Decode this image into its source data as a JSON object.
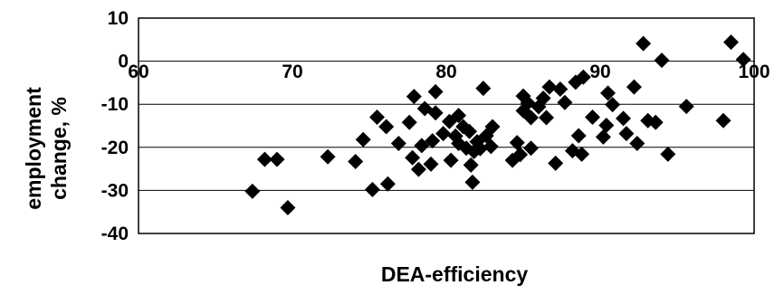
{
  "chart_data": {
    "type": "scatter",
    "title": "",
    "xlabel": "DEA-efficiency",
    "ylabel_lines": [
      "employment",
      "change, %"
    ],
    "xlim": [
      60,
      100
    ],
    "ylim": [
      -40,
      10
    ],
    "x_ticks": [
      60,
      70,
      80,
      90,
      100
    ],
    "y_ticks": [
      10,
      0,
      -10,
      -20,
      -30,
      -40
    ],
    "x_tick_labels": [
      "60",
      "70",
      "80",
      "90",
      "100"
    ],
    "y_tick_labels": [
      "10",
      "0",
      "-10",
      "-20",
      "-30",
      "-40"
    ],
    "grid": "horizontal",
    "marker": "diamond",
    "marker_color": "#000000",
    "series": [
      {
        "points": [
          [
            67.4,
            -30.2
          ],
          [
            68.2,
            -22.8
          ],
          [
            69.0,
            -22.8
          ],
          [
            69.7,
            -34.0
          ],
          [
            72.3,
            -22.2
          ],
          [
            74.1,
            -23.3
          ],
          [
            74.6,
            -18.2
          ],
          [
            75.2,
            -29.8
          ],
          [
            75.5,
            -13.0
          ],
          [
            76.1,
            -15.2
          ],
          [
            76.2,
            -28.5
          ],
          [
            76.9,
            -19.1
          ],
          [
            77.6,
            -14.2
          ],
          [
            77.8,
            -22.4
          ],
          [
            77.9,
            -8.2
          ],
          [
            78.2,
            -25.1
          ],
          [
            78.4,
            -19.6
          ],
          [
            78.6,
            -11.0
          ],
          [
            79.0,
            -23.9
          ],
          [
            79.1,
            -18.5
          ],
          [
            79.3,
            -7.1
          ],
          [
            79.3,
            -12.0
          ],
          [
            79.8,
            -16.8
          ],
          [
            80.2,
            -14.0
          ],
          [
            80.3,
            -23.0
          ],
          [
            80.6,
            -17.4
          ],
          [
            80.8,
            -12.6
          ],
          [
            80.8,
            -19.1
          ],
          [
            81.1,
            -15.2
          ],
          [
            81.3,
            -20.2
          ],
          [
            81.5,
            -16.3
          ],
          [
            81.6,
            -24.1
          ],
          [
            81.7,
            -28.1
          ],
          [
            81.8,
            -21.0
          ],
          [
            82.0,
            -18.7
          ],
          [
            82.2,
            -20.3
          ],
          [
            82.4,
            -6.3
          ],
          [
            82.6,
            -17.3
          ],
          [
            82.9,
            -19.8
          ],
          [
            83.0,
            -15.2
          ],
          [
            84.3,
            -23.0
          ],
          [
            84.6,
            -18.9
          ],
          [
            84.8,
            -21.7
          ],
          [
            85.0,
            -8.1
          ],
          [
            85.0,
            -11.5
          ],
          [
            85.3,
            -9.7
          ],
          [
            85.5,
            -20.2
          ],
          [
            85.5,
            -13.1
          ],
          [
            86.0,
            -10.6
          ],
          [
            86.3,
            -8.6
          ],
          [
            86.5,
            -13.1
          ],
          [
            86.7,
            -6.0
          ],
          [
            87.1,
            -23.7
          ],
          [
            87.4,
            -6.5
          ],
          [
            87.7,
            -9.6
          ],
          [
            88.2,
            -20.8
          ],
          [
            88.4,
            -4.9
          ],
          [
            88.6,
            -17.3
          ],
          [
            88.8,
            -21.6
          ],
          [
            88.9,
            -3.7
          ],
          [
            89.5,
            -13.0
          ],
          [
            90.2,
            -17.6
          ],
          [
            90.4,
            -14.9
          ],
          [
            90.5,
            -7.4
          ],
          [
            90.8,
            -10.1
          ],
          [
            91.5,
            -13.3
          ],
          [
            91.7,
            -16.8
          ],
          [
            92.2,
            -6.0
          ],
          [
            92.4,
            -19.1
          ],
          [
            92.8,
            4.1
          ],
          [
            93.1,
            -13.8
          ],
          [
            93.6,
            -14.2
          ],
          [
            94.0,
            0.2
          ],
          [
            94.4,
            -21.6
          ],
          [
            95.6,
            -10.5
          ],
          [
            98.0,
            -13.8
          ],
          [
            98.5,
            4.4
          ],
          [
            99.3,
            0.4
          ]
        ]
      }
    ]
  }
}
